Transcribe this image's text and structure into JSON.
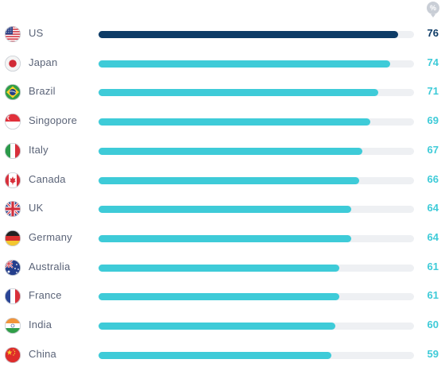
{
  "unit_badge": "%",
  "colors": {
    "highlight": "#0d3b66",
    "bar": "#3ecbd8",
    "track": "#eef0f3"
  },
  "chart_data": {
    "type": "bar",
    "orientation": "horizontal",
    "unit": "%",
    "xlim": [
      0,
      80
    ],
    "categories": [
      "US",
      "Japan",
      "Brazil",
      "Singopore",
      "Italy",
      "Canada",
      "UK",
      "Germany",
      "Australia",
      "France",
      "India",
      "China"
    ],
    "values": [
      76,
      74,
      71,
      69,
      67,
      66,
      64,
      64,
      61,
      61,
      60,
      59
    ],
    "flags": [
      "us-flag-icon",
      "japan-flag-icon",
      "brazil-flag-icon",
      "singapore-flag-icon",
      "italy-flag-icon",
      "canada-flag-icon",
      "uk-flag-icon",
      "germany-flag-icon",
      "australia-flag-icon",
      "france-flag-icon",
      "india-flag-icon",
      "china-flag-icon"
    ],
    "highlighted_category": "US"
  }
}
